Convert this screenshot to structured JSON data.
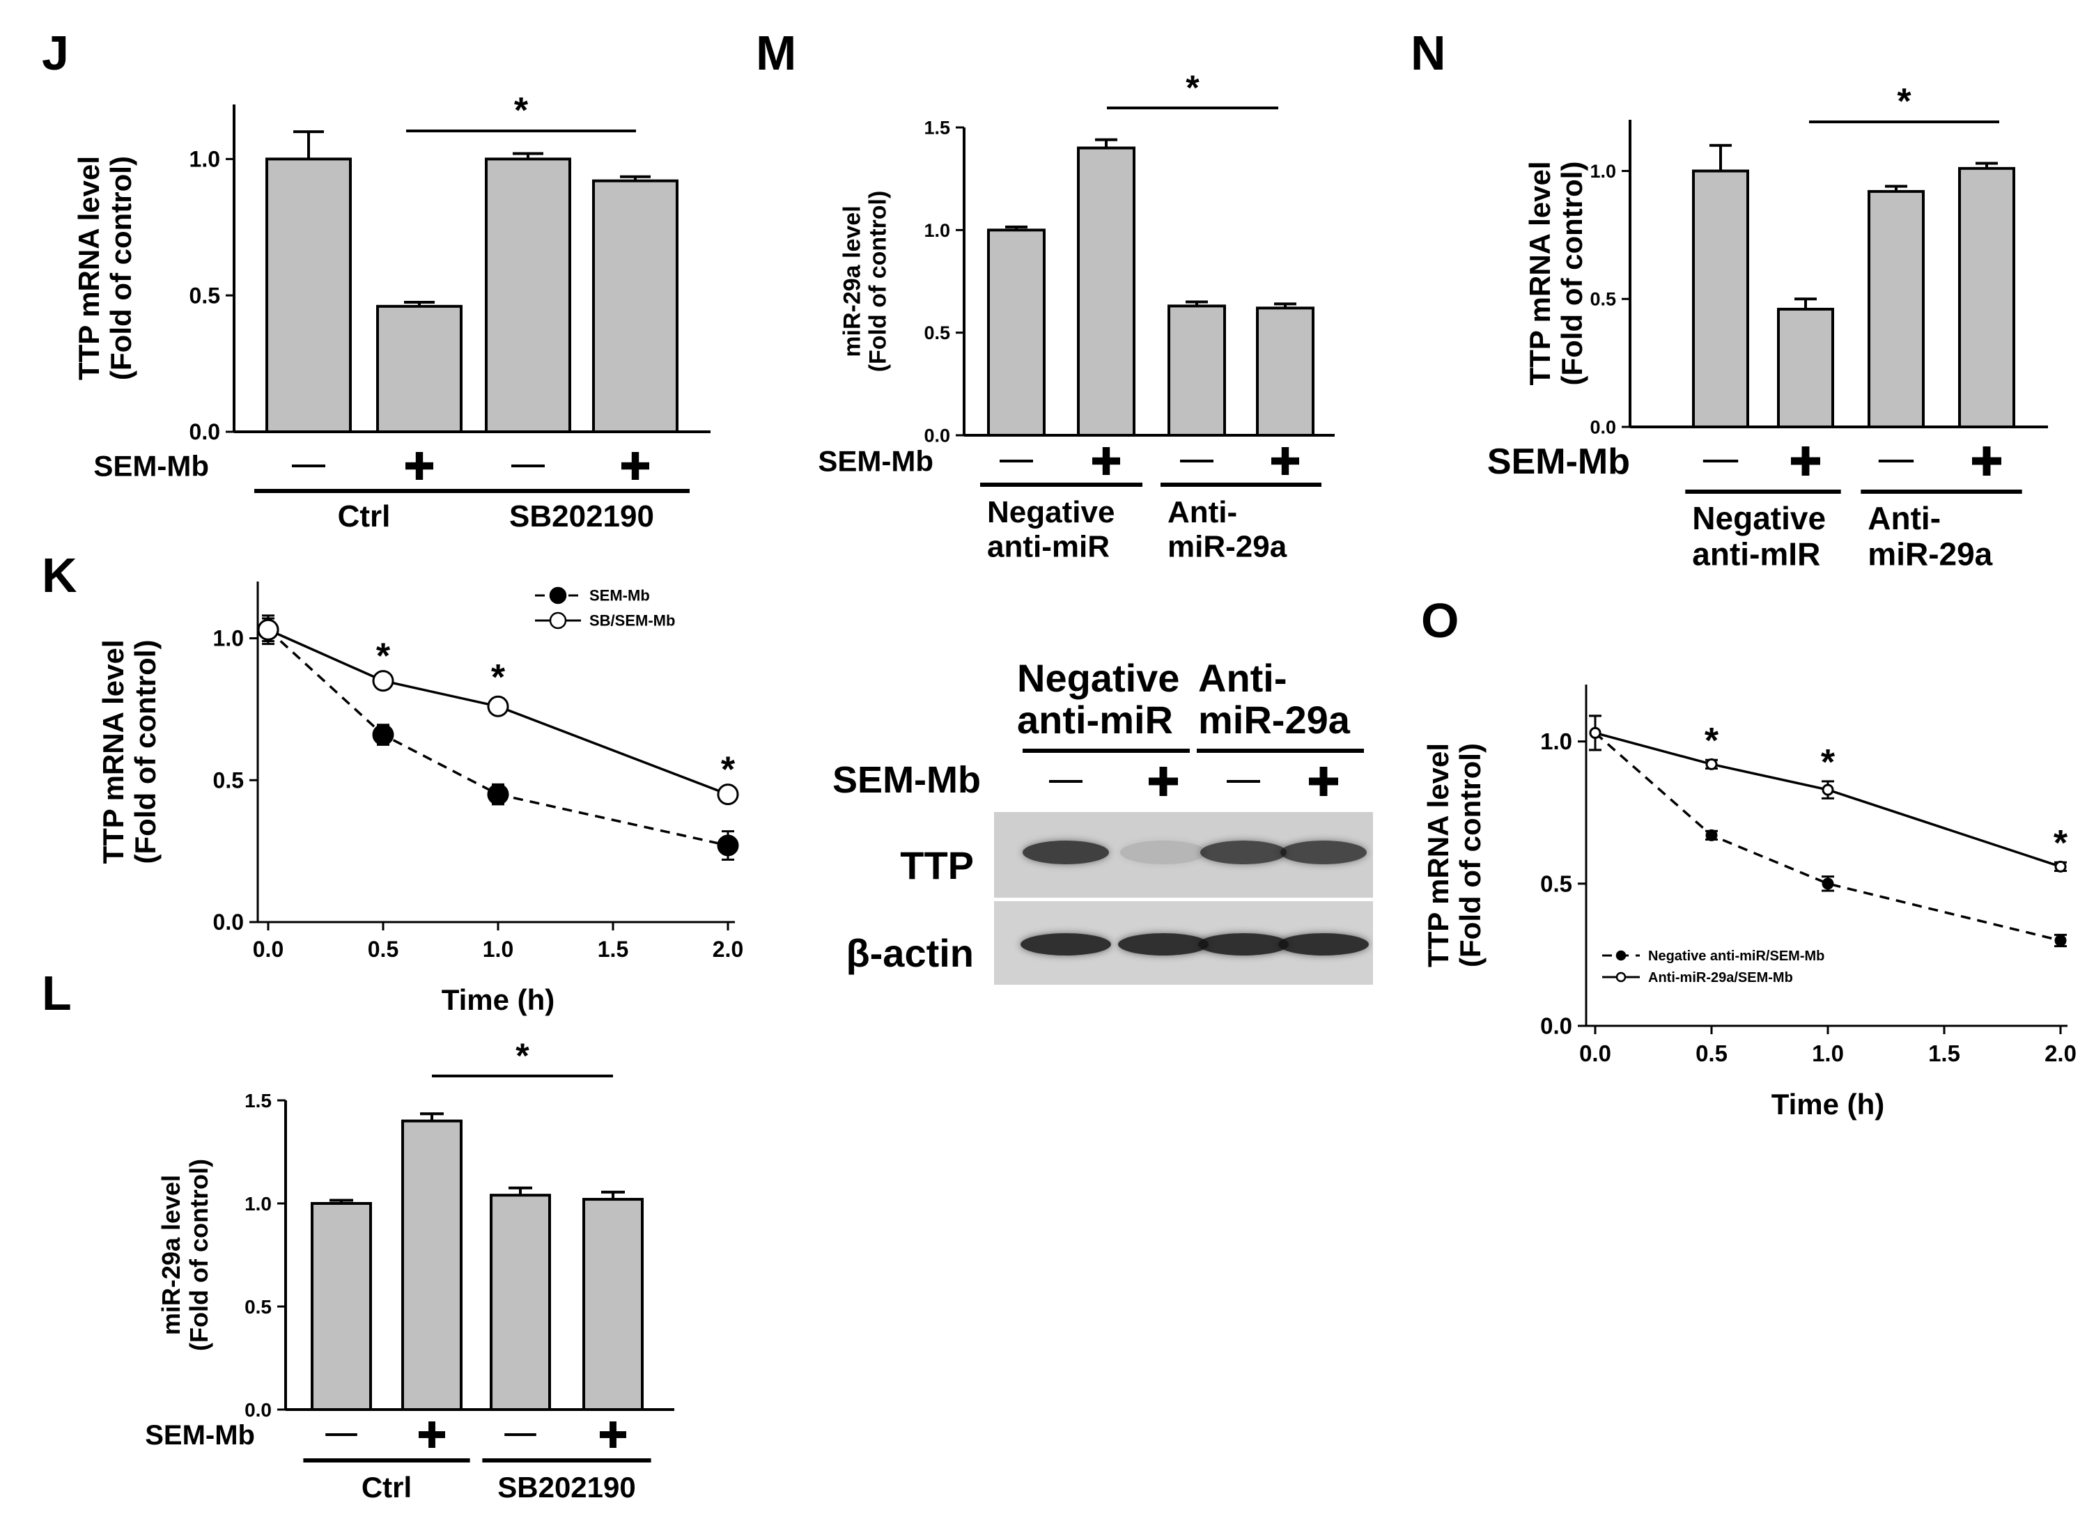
{
  "chart_data": [
    {
      "panel": "J",
      "type": "bar",
      "ylabel": "TTP mRNA level\n(Fold of control)",
      "ylim": [
        0,
        1.2
      ],
      "yticks": [
        "0.0",
        "0.5",
        "1.0"
      ],
      "treatment_label": "SEM-Mb",
      "treatment_signs": [
        "—",
        "+",
        "—",
        "+"
      ],
      "groups": [
        "Ctrl",
        "SB202190"
      ],
      "values": [
        1.0,
        0.46,
        1.0,
        0.92
      ],
      "errors": [
        0.1,
        0.015,
        0.02,
        0.015
      ],
      "significance": "*"
    },
    {
      "panel": "K",
      "type": "line",
      "ylabel": "TTP mRNA level\n(Fold of control)",
      "xlabel": "Time (h)",
      "xlim": [
        0,
        2
      ],
      "ylim": [
        0,
        1.2
      ],
      "xticks": [
        "0.0",
        "0.5",
        "1.0",
        "1.5",
        "2.0"
      ],
      "yticks": [
        "0.0",
        "0.5",
        "1.0"
      ],
      "x": [
        0,
        0.5,
        1.0,
        2.0
      ],
      "series": [
        {
          "name": "SEM-Mb",
          "values": [
            1.03,
            0.66,
            0.45,
            0.27
          ],
          "errors": [
            0.05,
            0.035,
            0.035,
            0.05
          ]
        },
        {
          "name": "SB/SEM-Mb",
          "values": [
            1.03,
            0.85,
            0.76,
            0.45
          ],
          "errors": [
            0.04,
            0.01,
            0.025,
            0.01
          ]
        }
      ],
      "annotations": [
        "*",
        "*",
        "*"
      ]
    },
    {
      "panel": "L",
      "type": "bar",
      "ylabel": "miR-29a level\n(Fold of control)",
      "ylim": [
        0,
        1.5
      ],
      "yticks": [
        "0.0",
        "0.5",
        "1.0",
        "1.5"
      ],
      "treatment_label": "SEM-Mb",
      "treatment_signs": [
        "—",
        "+",
        "—",
        "+"
      ],
      "groups": [
        "Ctrl",
        "SB202190"
      ],
      "values": [
        1.0,
        1.4,
        1.04,
        1.02
      ],
      "errors": [
        0.015,
        0.035,
        0.035,
        0.035
      ],
      "significance": "*"
    },
    {
      "panel": "M",
      "type": "bar",
      "ylabel": "miR-29a level\n(Fold of control)",
      "ylim": [
        0,
        1.5
      ],
      "yticks": [
        "0.0",
        "0.5",
        "1.0",
        "1.5"
      ],
      "treatment_label": "SEM-Mb",
      "treatment_signs": [
        "—",
        "+",
        "—",
        "+"
      ],
      "groups": [
        "Negative\nanti-miR",
        "Anti-\nmiR-29a"
      ],
      "values": [
        1.0,
        1.4,
        0.63,
        0.62
      ],
      "errors": [
        0.015,
        0.04,
        0.02,
        0.02
      ],
      "significance": "*"
    },
    {
      "panel": "N",
      "type": "bar",
      "ylabel": "TTP mRNA level\n(Fold of control)",
      "ylim": [
        0,
        1.2
      ],
      "yticks": [
        "0.0",
        "0.5",
        "1.0"
      ],
      "treatment_label": "SEM-Mb",
      "treatment_signs": [
        "—",
        "+",
        "—",
        "+"
      ],
      "groups": [
        "Negative\nanti-mIR",
        "Anti-\nmiR-29a"
      ],
      "values": [
        1.0,
        0.46,
        0.92,
        1.01
      ],
      "errors": [
        0.1,
        0.04,
        0.02,
        0.02
      ],
      "significance": "*"
    },
    {
      "panel": "O",
      "type": "line",
      "ylabel": "TTP mRNA level\n(Fold of control)",
      "xlabel": "Time (h)",
      "xlim": [
        0,
        2
      ],
      "ylim": [
        0,
        1.2
      ],
      "xticks": [
        "0.0",
        "0.5",
        "1.0",
        "1.5",
        "2.0"
      ],
      "yticks": [
        "0.0",
        "0.5",
        "1.0"
      ],
      "x": [
        0,
        0.5,
        1.0,
        2.0
      ],
      "series": [
        {
          "name": "Negative anti-miR/SEM-Mb",
          "values": [
            1.03,
            0.67,
            0.5,
            0.3
          ],
          "errors": [
            0.06,
            0.015,
            0.025,
            0.02
          ]
        },
        {
          "name": "Anti-miR-29a/SEM-Mb",
          "values": [
            1.03,
            0.92,
            0.83,
            0.56
          ],
          "errors": [
            0.06,
            0.015,
            0.03,
            0.015
          ]
        }
      ],
      "annotations": [
        "*",
        "*",
        "*"
      ]
    }
  ],
  "western_blot": {
    "groups": [
      "Negative\nanti-miR",
      "Anti-\nmiR-29a"
    ],
    "treatment_label": "SEM-Mb",
    "treatment_signs": [
      "—",
      "+",
      "—",
      "+"
    ],
    "rows": [
      "TTP",
      "β-actin"
    ],
    "ttp_intensity": [
      0.85,
      0.15,
      0.8,
      0.8
    ],
    "actin_intensity": [
      0.95,
      0.95,
      0.95,
      0.95
    ]
  }
}
